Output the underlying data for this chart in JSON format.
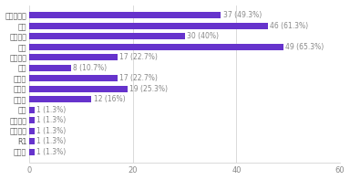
{
  "categories": [
    "きのこ",
    "R1",
    "麹を使う",
    "ハチミツ",
    "玄米",
    "果物類",
    "キムチ",
    "海藻類",
    "緑茶",
    "しょうが",
    "みそ",
    "きのこ類",
    "納豆",
    "ヨーグルト"
  ],
  "values": [
    1,
    1,
    1,
    1,
    1,
    12,
    19,
    17,
    8,
    17,
    49,
    30,
    46,
    37
  ],
  "labels": [
    "1 (1.3%)",
    "1 (1.3%)",
    "1 (1.3%)",
    "1 (1.3%)",
    "1 (1.3%)",
    "12 (16%)",
    "19 (25.3%)",
    "17 (22.7%)",
    "8 (10.7%)",
    "17 (22.7%)",
    "49 (65.3%)",
    "30 (40%)",
    "46 (61.3%)",
    "37 (49.3%)"
  ],
  "bar_color": "#6633cc",
  "label_color": "#888888",
  "background_color": "#ffffff",
  "xlim": [
    0,
    60
  ],
  "xticks": [
    0,
    20,
    40,
    60
  ],
  "figsize": [
    3.84,
    1.97
  ],
  "dpi": 100
}
